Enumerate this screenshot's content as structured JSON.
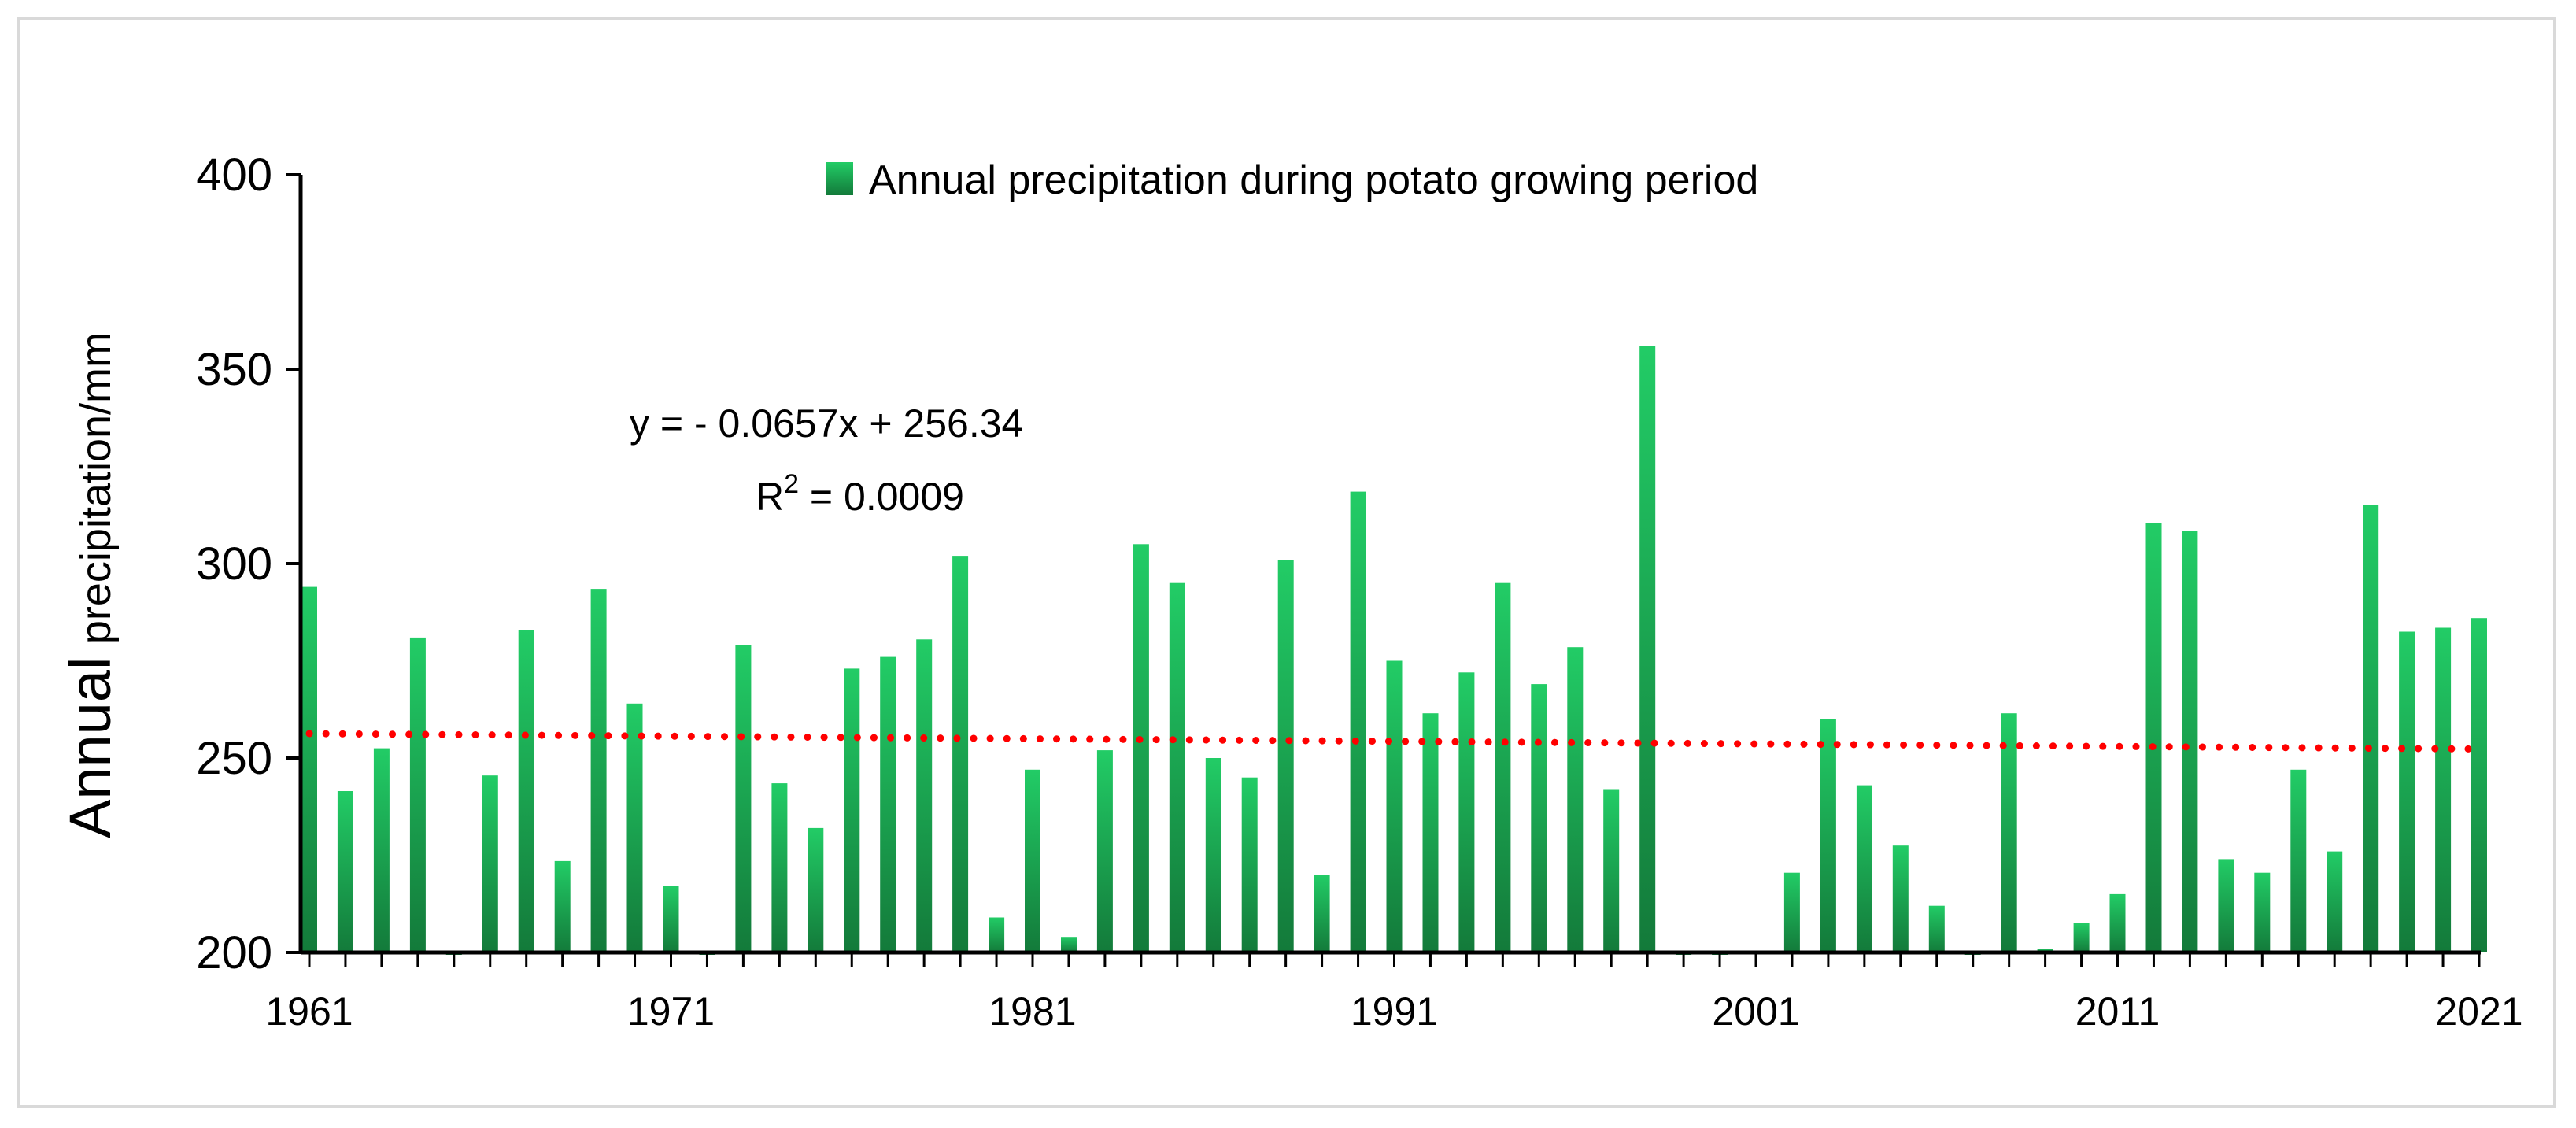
{
  "chart_data": {
    "type": "bar",
    "title": "",
    "xlabel": "",
    "ylabel_main": "Annual",
    "ylabel_sub": "precipitation/mm",
    "ylim": [
      200,
      400
    ],
    "yticks": [
      200,
      250,
      300,
      350,
      400
    ],
    "xtick_labels": [
      "1961",
      "1971",
      "1981",
      "1991",
      "2001",
      "2011",
      "2021"
    ],
    "legend": "Annual precipitation during potato growing period",
    "equation": "y =  - 0.0657x + 256.34",
    "r2_prefix": "R",
    "r2_sup": "2",
    "r2_value": " = 0.0009",
    "trend": {
      "slope": -0.0657,
      "intercept": 256.34,
      "color": "#ff0000"
    },
    "bar_color_top": "#22cc66",
    "bar_color_bottom": "#137a3a",
    "series": [
      {
        "name": "Annual precipitation during potato growing period",
        "years": [
          1961,
          1962,
          1963,
          1964,
          1965,
          1966,
          1967,
          1968,
          1969,
          1970,
          1971,
          1972,
          1973,
          1974,
          1975,
          1976,
          1977,
          1978,
          1979,
          1980,
          1981,
          1982,
          1983,
          1984,
          1985,
          1986,
          1987,
          1988,
          1989,
          1990,
          1991,
          1992,
          1993,
          1994,
          1995,
          1996,
          1997,
          1998,
          1999,
          2000,
          2001,
          2002,
          2003,
          2004,
          2005,
          2006,
          2007,
          2008,
          2009,
          2010,
          2011,
          2012,
          2013,
          2014,
          2015,
          2016,
          2017,
          2018,
          2019,
          2020,
          2021
        ],
        "values": [
          294,
          241.5,
          252.5,
          281,
          199.5,
          245.5,
          283,
          223.5,
          293.5,
          264,
          217,
          199.5,
          279,
          243.5,
          232,
          273,
          276,
          280.5,
          302,
          209,
          247,
          204,
          252,
          305,
          295,
          250,
          245,
          301,
          220,
          318.5,
          275,
          261.5,
          272,
          295,
          269,
          278.5,
          242,
          356,
          199.5,
          199.5,
          200,
          220.5,
          260,
          243,
          227.5,
          212,
          199.5,
          261.5,
          201,
          207.5,
          215,
          310.5,
          308.5,
          224,
          220.5,
          247,
          226,
          315,
          282.5,
          283.5,
          286
        ]
      }
    ]
  }
}
